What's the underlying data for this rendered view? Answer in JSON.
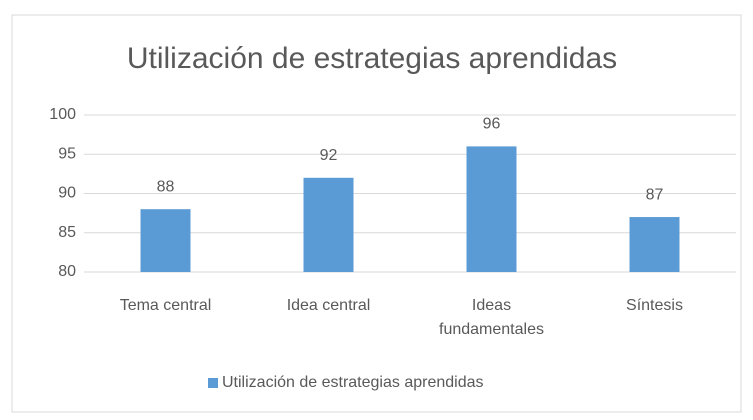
{
  "chart_data": {
    "type": "bar",
    "title": "Utilización de estrategias aprendidas",
    "categories": [
      "Tema central",
      "Idea central",
      "Ideas fundamentales",
      "Síntesis"
    ],
    "series": [
      {
        "name": "Utilización de estrategias aprendidas",
        "color": "#5b9bd5",
        "values": [
          88,
          92,
          96,
          87
        ]
      }
    ],
    "ylim": [
      80,
      100
    ],
    "yticks": [
      80,
      85,
      90,
      95,
      100
    ],
    "grid": true,
    "legend": "bottom",
    "data_labels": true
  }
}
